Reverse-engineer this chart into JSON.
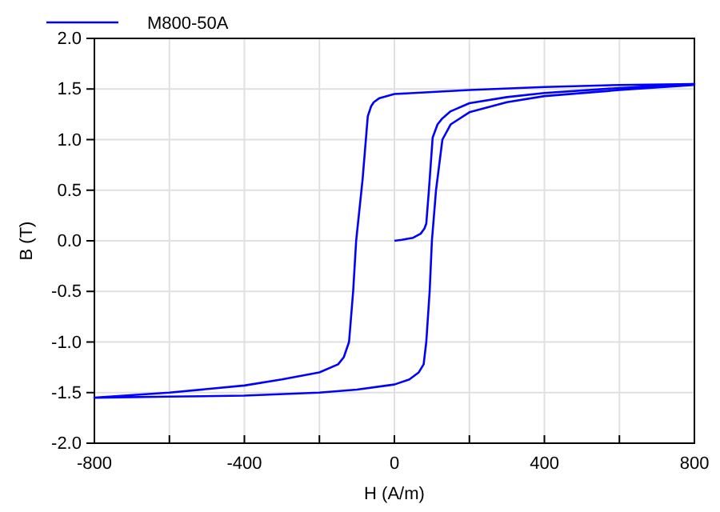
{
  "chart_data": {
    "type": "line",
    "xlabel": "H (A/m)",
    "ylabel": "B (T)",
    "xlim": [
      -800,
      800
    ],
    "xticks": [
      -800,
      {
        "value": -600,
        "label": null
      },
      -400,
      {
        "value": -200,
        "label": null
      },
      0,
      {
        "value": 200,
        "label": null
      },
      400,
      {
        "value": 600,
        "label": null
      },
      800
    ],
    "ylim": [
      -2.0,
      2.0
    ],
    "yticks": [
      {
        "value": -2.0,
        "label": "-2.0"
      },
      {
        "value": -1.5,
        "label": "-1.5"
      },
      {
        "value": -1.0,
        "label": "-1.0"
      },
      {
        "value": -0.5,
        "label": "-0.5"
      },
      {
        "value": 0,
        "label": "0.0"
      },
      {
        "value": 0.5,
        "label": "0.5"
      },
      {
        "value": 1.0,
        "label": "1.0"
      },
      {
        "value": 1.5,
        "label": "1.5"
      },
      {
        "value": 2.0,
        "label": "2.0"
      }
    ],
    "grid": true,
    "legend": "top left",
    "marker": "none",
    "line_style": "solid",
    "series": [
      {
        "name": "M800-50A",
        "color": "#0000ff",
        "x": [
          0,
          20,
          50,
          70,
          80,
          85,
          92,
          102,
          115,
          128,
          150,
          200,
          300,
          400,
          600,
          800,
          600,
          400,
          200,
          0,
          -40,
          -55,
          -62,
          -71,
          -85,
          -102,
          -110,
          -121,
          -135,
          -150,
          -200,
          -300,
          -400,
          -600,
          -800,
          -600,
          -400,
          -200,
          -100,
          0,
          40,
          65,
          78,
          85,
          94,
          100,
          111,
          128,
          150,
          200,
          300,
          400,
          600,
          800
        ],
        "values": [
          0,
          0.01,
          0.03,
          0.07,
          0.12,
          0.17,
          0.5,
          1.02,
          1.15,
          1.21,
          1.28,
          1.36,
          1.42,
          1.46,
          1.51,
          1.55,
          1.54,
          1.52,
          1.49,
          1.45,
          1.41,
          1.37,
          1.33,
          1.23,
          0.6,
          0,
          -0.5,
          -1.0,
          -1.15,
          -1.22,
          -1.3,
          -1.37,
          -1.43,
          -1.5,
          -1.55,
          -1.54,
          -1.53,
          -1.5,
          -1.47,
          -1.42,
          -1.37,
          -1.3,
          -1.22,
          -1.0,
          -0.5,
          0,
          0.5,
          1.0,
          1.15,
          1.27,
          1.37,
          1.43,
          1.49,
          1.54
        ]
      }
    ]
  }
}
